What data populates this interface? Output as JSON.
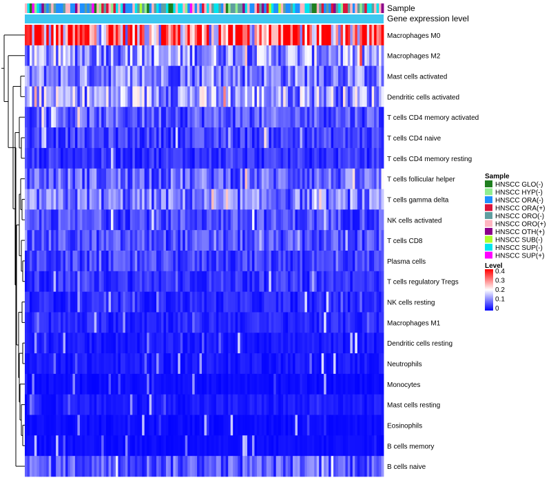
{
  "chart_data": {
    "type": "heatmap",
    "title": "",
    "annotation_labels": [
      "Sample",
      "Gene expression level"
    ],
    "rows": [
      "Macrophages M0",
      "Macrophages M2",
      "Mast cells activated",
      "Dendritic cells activated",
      "T cells CD4 memory activated",
      "T cells CD4 naive",
      "T cells CD4 memory resting",
      "T cells follicular helper",
      "T cells gamma delta",
      "NK cells activated",
      "T cells CD8",
      "Plasma cells",
      "T cells regulatory  Tregs",
      "NK cells resting",
      "Macrophages M1",
      "Dendritic cells resting",
      "Neutrophils",
      "Monocytes",
      "Mast cells resting",
      "Eosinophils",
      "B cells memory",
      "B cells naive"
    ],
    "row_mean_level": [
      0.3,
      0.12,
      0.1,
      0.13,
      0.07,
      0.05,
      0.04,
      0.08,
      0.09,
      0.06,
      0.06,
      0.05,
      0.04,
      0.03,
      0.03,
      0.02,
      0.02,
      0.01,
      0.02,
      0.01,
      0.01,
      0.07
    ],
    "n_samples": 150,
    "legend_sample": {
      "title": "Sample",
      "entries": [
        {
          "label": "HNSCC GLO(-)",
          "color": "#1f7f1f"
        },
        {
          "label": "HNSCC HYP(-)",
          "color": "#90ee90"
        },
        {
          "label": "HNSCC ORA(-)",
          "color": "#1e90ff"
        },
        {
          "label": "HNSCC ORA(+)",
          "color": "#dc143c"
        },
        {
          "label": "HNSCC ORO(-)",
          "color": "#5f9ea0"
        },
        {
          "label": "HNSCC ORO(+)",
          "color": "#ffb6c1"
        },
        {
          "label": "HNSCC OTH(+)",
          "color": "#8b008b"
        },
        {
          "label": "HNSCC SUB(-)",
          "color": "#adff2f"
        },
        {
          "label": "HNSCC SUP(-)",
          "color": "#00e5ee"
        },
        {
          "label": "HNSCC SUP(+)",
          "color": "#ff00ff"
        }
      ]
    },
    "legend_level": {
      "title": "Level",
      "ticks": [
        "0.4",
        "0.3",
        "0.2",
        "0.1",
        "0"
      ],
      "range": [
        0,
        0.4
      ],
      "colors": [
        "#0000ff",
        "#ffffff",
        "#ff0000"
      ]
    },
    "gene_expression_color": "#3ec7f0"
  }
}
